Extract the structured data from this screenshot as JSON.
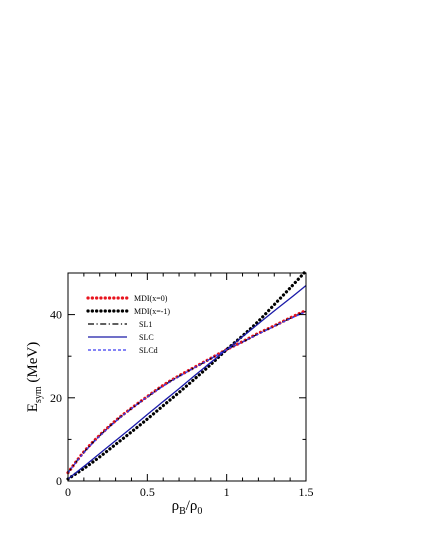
{
  "chart_data": {
    "type": "line",
    "title": "",
    "xlabel": {
      "main": "ρ",
      "sub1": "B",
      "slash": "/ρ",
      "sub2": "0"
    },
    "ylabel": {
      "main": "E",
      "sub": "sym",
      "unit": " (MeV)"
    },
    "xlim": [
      0,
      1.5
    ],
    "ylim": [
      0,
      50
    ],
    "xticks": [
      0,
      0.5,
      1,
      1.5
    ],
    "xtick_labels": [
      "0",
      "0.5",
      "1",
      "1.5"
    ],
    "yticks": [
      0,
      20,
      40
    ],
    "ytick_labels": [
      "0",
      "20",
      "40"
    ],
    "grid": false,
    "legend_position": "top-left",
    "x": [
      0,
      0.1,
      0.2,
      0.3,
      0.4,
      0.5,
      0.6,
      0.7,
      0.8,
      0.9,
      1.0,
      1.1,
      1.2,
      1.3,
      1.4,
      1.5
    ],
    "series": [
      {
        "name": "MDI(x=0)",
        "color": "#e8141e",
        "style": "dotted-thick",
        "values": [
          2.0,
          7.0,
          11.0,
          14.5,
          17.5,
          20.3,
          23.0,
          25.3,
          27.4,
          29.5,
          31.6,
          33.5,
          35.5,
          37.3,
          39.2,
          41.0
        ]
      },
      {
        "name": "MDI(x=-1)",
        "color": "#000000",
        "style": "dotted-thick",
        "values": [
          0.5,
          3.0,
          5.8,
          8.8,
          11.8,
          14.9,
          18.1,
          21.3,
          24.6,
          28.0,
          31.6,
          34.9,
          38.4,
          42.4,
          46.4,
          50.5
        ]
      },
      {
        "name": "SL1",
        "color": "#000000",
        "style": "dashdot",
        "values": [
          2.0,
          6.9,
          10.9,
          14.4,
          17.4,
          20.2,
          22.9,
          25.2,
          27.3,
          29.4,
          31.6,
          33.4,
          35.4,
          37.2,
          39.1,
          40.8
        ]
      },
      {
        "name": "SLC",
        "color": "#1a1aa8",
        "style": "solid",
        "values": [
          0.5,
          3.5,
          6.6,
          9.7,
          12.8,
          16.0,
          19.1,
          22.2,
          25.4,
          28.5,
          31.6,
          34.7,
          37.8,
          40.9,
          43.9,
          47.0
        ]
      },
      {
        "name": "SLCd",
        "color": "#3b3bf0",
        "style": "dashed",
        "values": [
          2.0,
          6.8,
          10.8,
          14.3,
          17.4,
          20.2,
          22.8,
          25.1,
          27.3,
          29.4,
          31.6,
          33.4,
          35.3,
          37.2,
          39.0,
          40.7
        ]
      }
    ]
  }
}
